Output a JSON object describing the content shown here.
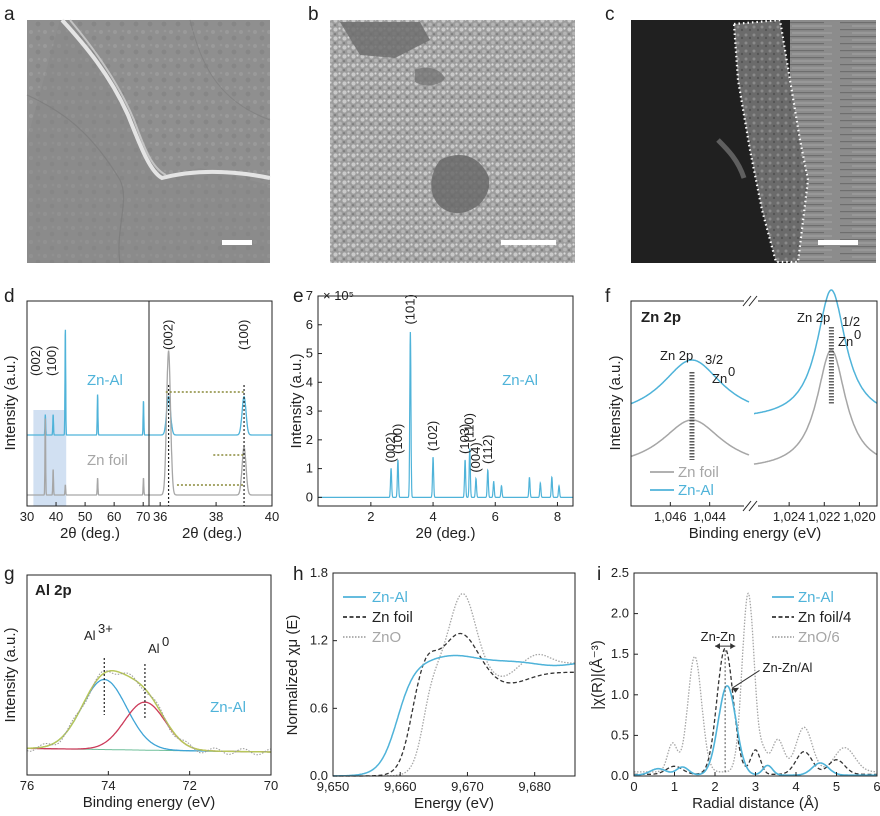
{
  "panel_labels": [
    "a",
    "b",
    "c",
    "d",
    "e",
    "f",
    "g",
    "h",
    "i"
  ],
  "colors": {
    "zn_al": "#4fb3d9",
    "zn_foil": "#a6a6a6",
    "zno": "#a6a6a6",
    "dark": "#333333",
    "al3": "#3fa4d6",
    "al0": "#cc3b5a",
    "env": "#b8c75a",
    "xrd_highlight": "#c5d8ef",
    "annot_dots": "#8a8a3a"
  },
  "micrographs": [
    {
      "panel": "a",
      "scale_bar": true,
      "kind": "sem-smooth"
    },
    {
      "panel": "b",
      "scale_bar": true,
      "kind": "sem-granular"
    },
    {
      "panel": "c",
      "scale_bar": true,
      "kind": "sem-crosssection"
    }
  ],
  "chart_data": [
    {
      "panel": "d",
      "type": "line",
      "xlabel": "2θ (deg.)",
      "ylabel": "Intensity (a.u.)",
      "left": {
        "xlim": [
          30,
          72
        ],
        "xticks": [
          "30",
          "40",
          "50",
          "60",
          "70"
        ],
        "xtick_vals": [
          30,
          40,
          50,
          60,
          70
        ]
      },
      "right": {
        "xlim": [
          35.6,
          40
        ],
        "xticks": [
          "36",
          "38",
          "40"
        ],
        "xtick_vals": [
          36,
          38,
          40
        ]
      },
      "peak_labels": [
        "(002)",
        "(100)"
      ],
      "series": [
        {
          "name": "Zn-Al",
          "peaks_x": [
            36.3,
            39.0,
            43.2,
            54.3,
            70.1
          ],
          "peaks_h": [
            0.12,
            0.12,
            0.62,
            0.24,
            0.2
          ]
        },
        {
          "name": "Zn foil",
          "peaks_x": [
            36.3,
            39.0,
            43.2,
            54.3,
            70.1
          ],
          "peaks_h": [
            0.45,
            0.15,
            0.06,
            0.1,
            0.1
          ]
        }
      ]
    },
    {
      "panel": "e",
      "type": "line",
      "xlabel": "2θ (deg.)",
      "ylabel": "Intensity (a.u.)",
      "multiplier": "× 10⁵",
      "xlim": [
        0.3,
        8.5
      ],
      "ylim": [
        -0.3,
        7
      ],
      "xticks": [
        "2",
        "4",
        "6",
        "8"
      ],
      "xtick_vals": [
        2,
        4,
        6,
        8
      ],
      "yticks": [
        "0",
        "1",
        "2",
        "3",
        "4",
        "5",
        "6",
        "7"
      ],
      "ytick_vals": [
        0,
        1,
        2,
        3,
        4,
        5,
        6,
        7
      ],
      "series_name": "Zn-Al",
      "peaks": [
        {
          "x": 2.65,
          "h": 1.0,
          "label": "(002)"
        },
        {
          "x": 2.87,
          "h": 1.3,
          "label": "(100)"
        },
        {
          "x": 3.27,
          "h": 5.8,
          "label": "(101)"
        },
        {
          "x": 4.0,
          "h": 1.4,
          "label": "(102)"
        },
        {
          "x": 5.03,
          "h": 1.3,
          "label": "(103)"
        },
        {
          "x": 5.18,
          "h": 1.7,
          "label": "(110)"
        },
        {
          "x": 5.38,
          "h": 0.65,
          "label": "(004)"
        },
        {
          "x": 5.76,
          "h": 0.95,
          "label": "(112)"
        },
        {
          "x": 5.95,
          "h": 0.55,
          "label": ""
        },
        {
          "x": 6.2,
          "h": 0.4,
          "label": ""
        },
        {
          "x": 7.1,
          "h": 0.7,
          "label": ""
        },
        {
          "x": 7.45,
          "h": 0.5,
          "label": ""
        },
        {
          "x": 7.82,
          "h": 0.7,
          "label": ""
        },
        {
          "x": 8.05,
          "h": 0.4,
          "label": ""
        }
      ]
    },
    {
      "panel": "f",
      "type": "line",
      "title": "Zn 2p",
      "xlabel": "Binding energy (eV)",
      "ylabel": "Intensity (a.u.)",
      "left": {
        "xlim": [
          1048,
          1042
        ],
        "xticks": [
          "1,046",
          "1,044"
        ],
        "xtick_vals": [
          1046,
          1044
        ]
      },
      "right": {
        "xlim": [
          1026,
          1019
        ],
        "xticks": [
          "1,024",
          "1,022",
          "1,020"
        ],
        "xtick_vals": [
          1024,
          1022,
          1020
        ]
      },
      "annotations": {
        "zn2p32": "Zn 2p",
        "sub32": "3/2",
        "zn2p12": "Zn 2p",
        "sub12": "1/2",
        "zn0a": "Zn",
        "sup0a": "0",
        "zn0b": "Zn",
        "sup0b": "0"
      },
      "series": [
        {
          "name": "Zn foil"
        },
        {
          "name": "Zn-Al"
        }
      ],
      "centers": [
        1044.9,
        1021.6
      ]
    },
    {
      "panel": "g",
      "type": "line",
      "title": "Al 2p",
      "xlabel": "Binding energy (eV)",
      "ylabel": "Intensity (a.u.)",
      "xlim": [
        76,
        70
      ],
      "xticks": [
        "76",
        "74",
        "72",
        "70"
      ],
      "xtick_vals": [
        76,
        74,
        72,
        70
      ],
      "components": [
        {
          "name": "Al3+",
          "label": "Al",
          "sup": "3+",
          "center": 74.1
        },
        {
          "name": "Al0",
          "label": "Al",
          "sup": "0",
          "center": 73.1
        }
      ],
      "series_name": "Zn-Al"
    },
    {
      "panel": "h",
      "type": "line",
      "xlabel": "Energy (eV)",
      "ylabel": "Normalized χμ (E)",
      "xlim": [
        9650,
        9686
      ],
      "ylim": [
        0,
        1.8
      ],
      "xticks": [
        "9,650",
        "9,660",
        "9,670",
        "9,680"
      ],
      "xtick_vals": [
        9650,
        9660,
        9670,
        9680
      ],
      "yticks": [
        "0.0",
        "0.6",
        "1.2",
        "1.8"
      ],
      "ytick_vals": [
        0,
        0.6,
        1.2,
        1.8
      ],
      "series": [
        {
          "name": "Zn-Al"
        },
        {
          "name": "Zn foil"
        },
        {
          "name": "ZnO"
        }
      ]
    },
    {
      "panel": "i",
      "type": "line",
      "xlabel": "Radial distance (Å)",
      "ylabel": "|χ(R)|(Å⁻³)",
      "xlim": [
        0,
        6
      ],
      "ylim": [
        0,
        2.5
      ],
      "xticks": [
        "0",
        "1",
        "2",
        "3",
        "4",
        "5",
        "6"
      ],
      "xtick_vals": [
        0,
        1,
        2,
        3,
        4,
        5,
        6
      ],
      "yticks": [
        "0.0",
        "0.5",
        "1.0",
        "1.5",
        "2.0",
        "2.5"
      ],
      "ytick_vals": [
        0,
        0.5,
        1.0,
        1.5,
        2.0,
        2.5
      ],
      "annotations": [
        "Zn-Zn",
        "Zn-Zn/Al"
      ],
      "series": [
        {
          "name": "Zn-Al"
        },
        {
          "name": "Zn foil/4"
        },
        {
          "name": "ZnO/6"
        }
      ]
    }
  ]
}
